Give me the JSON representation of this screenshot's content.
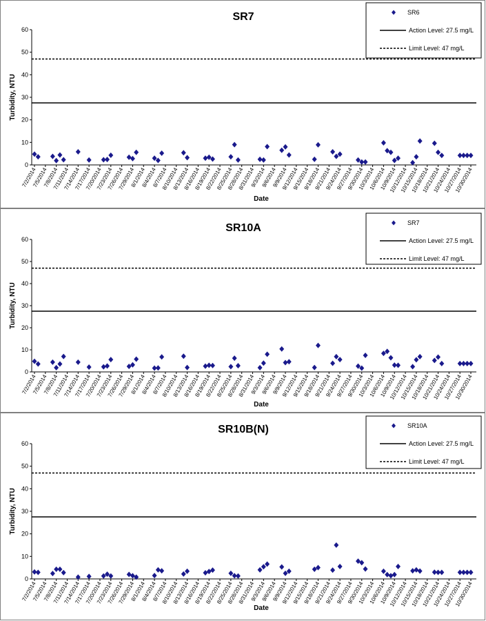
{
  "chart_data": [
    {
      "type": "scatter",
      "title": "SR7",
      "xlabel": "Date",
      "ylabel": "Turbidity, NTU",
      "ylim": [
        0,
        60
      ],
      "yticks": [
        0,
        10,
        20,
        30,
        40,
        50,
        60
      ],
      "xticks": [
        "7/2/2014",
        "7/5/2014",
        "7/8/2014",
        "7/11/2014",
        "7/14/2014",
        "7/17/2014",
        "7/20/2014",
        "7/23/2014",
        "7/26/2014",
        "7/29/2014",
        "8/1/2014",
        "8/4/2014",
        "8/7/2014",
        "8/10/2014",
        "8/13/2014",
        "8/16/2014",
        "8/19/2014",
        "8/22/2014",
        "8/25/2014",
        "8/28/2014",
        "8/31/2014",
        "9/3/2014",
        "9/6/2014",
        "9/9/2014",
        "9/12/2014",
        "9/15/2014",
        "9/18/2014",
        "9/21/2014",
        "9/24/2014",
        "9/27/2014",
        "9/30/2014",
        "10/3/2014",
        "10/6/2014",
        "10/9/2014",
        "10/12/2014",
        "10/15/2014",
        "10/18/2014",
        "10/21/2014",
        "10/24/2014",
        "10/27/2014",
        "10/30/2014"
      ],
      "series": [
        {
          "name": "SR6",
          "marker": "diamond",
          "color": "#1a1a8c",
          "x": [
            "7/2/2014",
            "7/3/2014",
            "7/7/2014",
            "7/8/2014",
            "7/9/2014",
            "7/10/2014",
            "7/14/2014",
            "7/17/2014",
            "7/21/2014",
            "7/22/2014",
            "7/23/2014",
            "7/28/2014",
            "7/29/2014",
            "7/30/2014",
            "8/4/2014",
            "8/5/2014",
            "8/6/2014",
            "8/12/2014",
            "8/13/2014",
            "8/18/2014",
            "8/19/2014",
            "8/20/2014",
            "8/25/2014",
            "8/26/2014",
            "8/27/2014",
            "9/2/2014",
            "9/3/2014",
            "9/4/2014",
            "9/8/2014",
            "9/9/2014",
            "9/10/2014",
            "9/17/2014",
            "9/18/2014",
            "9/22/2014",
            "9/23/2014",
            "9/24/2014",
            "9/29/2014",
            "9/30/2014",
            "10/1/2014",
            "10/6/2014",
            "10/7/2014",
            "10/8/2014",
            "10/9/2014",
            "10/10/2014",
            "10/14/2014",
            "10/15/2014",
            "10/16/2014",
            "10/20/2014",
            "10/21/2014",
            "10/22/2014",
            "10/27/2014",
            "10/28/2014",
            "10/29/2014",
            "10/30/2014"
          ],
          "y": [
            4.8,
            3.6,
            3.8,
            1.9,
            4.4,
            2.3,
            5.8,
            2.2,
            2.3,
            2.4,
            4.3,
            3.4,
            2.8,
            5.6,
            3.0,
            2.0,
            5.2,
            5.4,
            3.2,
            3.0,
            3.4,
            2.6,
            3.6,
            9.0,
            2.2,
            2.5,
            2.2,
            8.1,
            6.5,
            8.0,
            4.4,
            2.5,
            8.9,
            5.8,
            3.8,
            4.8,
            2.2,
            1.3,
            1.3,
            9.8,
            6.3,
            5.6,
            2.0,
            3.0,
            1.0,
            3.6,
            10.6,
            9.6,
            5.6,
            4.2,
            4.2,
            4.2,
            4.2,
            4.2
          ]
        },
        {
          "name": "Action Level: 27.5 mg/L",
          "type": "hline",
          "y": 27.5,
          "style": "solid",
          "color": "#000000"
        },
        {
          "name": "Limit Level: 47 mg/L",
          "type": "hline",
          "y": 47,
          "style": "dashed",
          "color": "#000000"
        }
      ],
      "legend": "top-right"
    },
    {
      "type": "scatter",
      "title": "SR10A",
      "xlabel": "Date",
      "ylabel": "Turbidity, NTU",
      "ylim": [
        0,
        60
      ],
      "yticks": [
        0,
        10,
        20,
        30,
        40,
        50,
        60
      ],
      "xticks": [
        "7/2/2014",
        "7/5/2014",
        "7/8/2014",
        "7/11/2014",
        "7/14/2014",
        "7/17/2014",
        "7/20/2014",
        "7/23/2014",
        "7/26/2014",
        "7/29/2014",
        "8/1/2014",
        "8/4/2014",
        "8/7/2014",
        "8/10/2014",
        "8/13/2014",
        "8/16/2014",
        "8/19/2014",
        "8/22/2014",
        "8/25/2014",
        "8/28/2014",
        "8/31/2014",
        "9/3/2014",
        "9/6/2014",
        "9/9/2014",
        "9/12/2014",
        "9/15/2014",
        "9/18/2014",
        "9/21/2014",
        "9/24/2014",
        "9/27/2014",
        "9/30/2014",
        "10/3/2014",
        "10/6/2014",
        "10/9/2014",
        "10/12/2014",
        "10/15/2014",
        "10/18/2014",
        "10/21/2014",
        "10/24/2014",
        "10/27/2014",
        "10/30/2014"
      ],
      "series": [
        {
          "name": "SR7",
          "marker": "diamond",
          "color": "#1a1a8c",
          "x": [
            "7/2/2014",
            "7/3/2014",
            "7/7/2014",
            "7/8/2014",
            "7/9/2014",
            "7/10/2014",
            "7/14/2014",
            "7/17/2014",
            "7/21/2014",
            "7/22/2014",
            "7/23/2014",
            "7/28/2014",
            "7/29/2014",
            "7/30/2014",
            "8/4/2014",
            "8/5/2014",
            "8/6/2014",
            "8/12/2014",
            "8/13/2014",
            "8/18/2014",
            "8/19/2014",
            "8/20/2014",
            "8/25/2014",
            "8/26/2014",
            "8/27/2014",
            "9/2/2014",
            "9/3/2014",
            "9/4/2014",
            "9/8/2014",
            "9/9/2014",
            "9/10/2014",
            "9/17/2014",
            "9/18/2014",
            "9/22/2014",
            "9/23/2014",
            "9/24/2014",
            "9/29/2014",
            "9/30/2014",
            "10/1/2014",
            "10/6/2014",
            "10/7/2014",
            "10/8/2014",
            "10/9/2014",
            "10/10/2014",
            "10/14/2014",
            "10/15/2014",
            "10/16/2014",
            "10/20/2014",
            "10/21/2014",
            "10/22/2014",
            "10/27/2014",
            "10/28/2014",
            "10/29/2014",
            "10/30/2014"
          ],
          "y": [
            4.8,
            3.6,
            4.4,
            1.9,
            3.6,
            7.0,
            4.4,
            2.2,
            2.3,
            2.7,
            5.6,
            2.5,
            3.2,
            5.8,
            1.7,
            1.8,
            6.8,
            7.1,
            2.0,
            2.6,
            3.0,
            2.9,
            2.4,
            6.2,
            2.8,
            1.9,
            4.0,
            8.0,
            10.4,
            4.2,
            4.6,
            2.0,
            12.0,
            3.9,
            6.9,
            5.6,
            2.6,
            1.7,
            7.5,
            8.4,
            9.3,
            6.4,
            3.1,
            3.0,
            2.4,
            5.5,
            6.9,
            5.2,
            6.7,
            3.8,
            3.8,
            3.8,
            3.8,
            3.8
          ]
        },
        {
          "name": "Action Level: 27.5 mg/L",
          "type": "hline",
          "y": 27.5,
          "style": "solid",
          "color": "#000000"
        },
        {
          "name": "Limit Level: 47 mg/L",
          "type": "hline",
          "y": 47,
          "style": "dashed",
          "color": "#000000"
        }
      ],
      "legend": "top-right"
    },
    {
      "type": "scatter",
      "title": "SR10B(N)",
      "xlabel": "Date",
      "ylabel": "Turbidity, NTU",
      "ylim": [
        0,
        60
      ],
      "yticks": [
        0,
        10,
        20,
        30,
        40,
        50,
        60
      ],
      "xticks": [
        "7/2/2014",
        "7/5/2014",
        "7/8/2014",
        "7/11/2014",
        "7/14/2014",
        "7/17/2014",
        "7/20/2014",
        "7/23/2014",
        "7/26/2014",
        "7/29/2014",
        "8/1/2014",
        "8/4/2014",
        "8/7/2014",
        "8/10/2014",
        "8/13/2014",
        "8/16/2014",
        "8/19/2014",
        "8/22/2014",
        "8/25/2014",
        "8/28/2014",
        "8/31/2014",
        "9/3/2014",
        "9/6/2014",
        "9/9/2014",
        "9/12/2014",
        "9/15/2014",
        "9/18/2014",
        "9/21/2014",
        "9/24/2014",
        "9/27/2014",
        "9/30/2014",
        "10/3/2014",
        "10/6/2014",
        "10/9/2014",
        "10/12/2014",
        "10/15/2014",
        "10/18/2014",
        "10/21/2014",
        "10/24/2014",
        "10/27/2014",
        "10/30/2014"
      ],
      "series": [
        {
          "name": "SR10A",
          "marker": "diamond",
          "color": "#1a1a8c",
          "x": [
            "7/2/2014",
            "7/3/2014",
            "7/7/2014",
            "7/8/2014",
            "7/9/2014",
            "7/10/2014",
            "7/14/2014",
            "7/17/2014",
            "7/21/2014",
            "7/22/2014",
            "7/23/2014",
            "7/28/2014",
            "7/29/2014",
            "7/30/2014",
            "8/4/2014",
            "8/5/2014",
            "8/6/2014",
            "8/12/2014",
            "8/13/2014",
            "8/18/2014",
            "8/19/2014",
            "8/20/2014",
            "8/25/2014",
            "8/26/2014",
            "8/27/2014",
            "9/2/2014",
            "9/3/2014",
            "9/4/2014",
            "9/8/2014",
            "9/9/2014",
            "9/10/2014",
            "9/17/2014",
            "9/18/2014",
            "9/22/2014",
            "9/23/2014",
            "9/24/2014",
            "9/29/2014",
            "9/30/2014",
            "10/1/2014",
            "10/6/2014",
            "10/7/2014",
            "10/8/2014",
            "10/9/2014",
            "10/10/2014",
            "10/14/2014",
            "10/15/2014",
            "10/16/2014",
            "10/20/2014",
            "10/21/2014",
            "10/22/2014",
            "10/27/2014",
            "10/28/2014",
            "10/29/2014",
            "10/30/2014"
          ],
          "y": [
            3.1,
            2.9,
            2.4,
            4.3,
            4.3,
            2.8,
            0.8,
            1.1,
            1.3,
            2.1,
            1.3,
            2.0,
            1.4,
            0.8,
            1.5,
            4.0,
            3.6,
            2.2,
            3.4,
            2.7,
            3.3,
            3.9,
            2.5,
            1.4,
            1.3,
            4.0,
            5.4,
            6.6,
            5.3,
            2.5,
            3.4,
            4.3,
            5.0,
            3.9,
            15.0,
            5.5,
            7.9,
            7.2,
            4.4,
            3.4,
            1.9,
            1.4,
            1.9,
            5.5,
            3.6,
            4.0,
            3.5,
            3.0,
            2.9,
            2.9,
            2.9,
            2.9,
            2.9,
            2.9
          ]
        },
        {
          "name": "Action Level: 27.5 mg/L",
          "type": "hline",
          "y": 27.5,
          "style": "solid",
          "color": "#000000"
        },
        {
          "name": "Limit Level: 47 mg/L",
          "type": "hline",
          "y": 47,
          "style": "dashed",
          "color": "#000000"
        }
      ],
      "legend": "top-right"
    }
  ]
}
